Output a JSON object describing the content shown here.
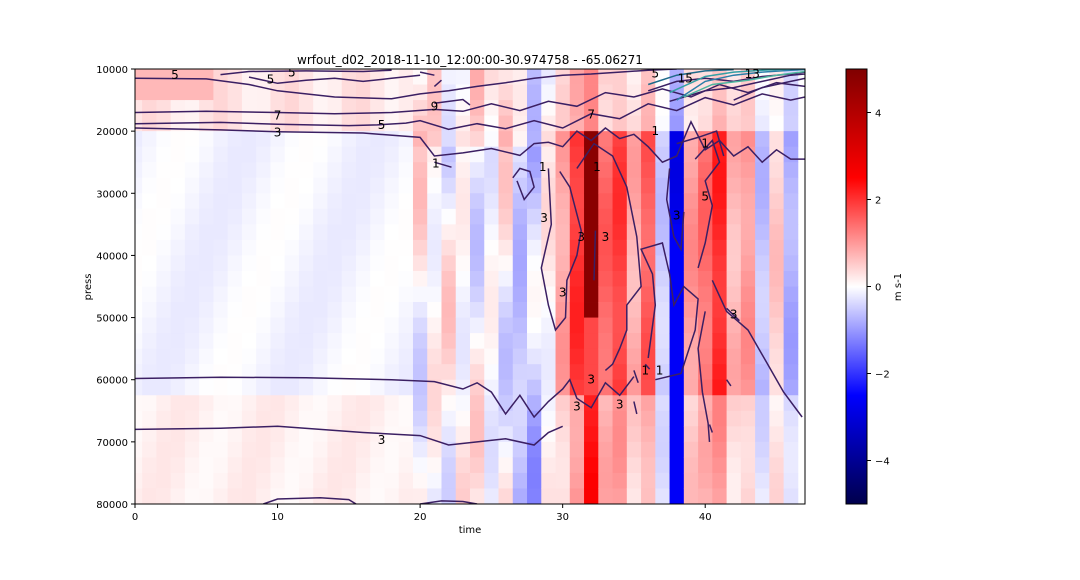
{
  "chart_data": {
    "type": "heatmap",
    "title": "wrfout_d02_2018-11-10_12:00:00-30.974758 - -65.06271",
    "xlabel": "time",
    "ylabel": "press",
    "xlim": [
      0,
      47
    ],
    "ylim": [
      80000,
      10000
    ],
    "y_axis_inverted": true,
    "xticks": [
      0,
      10,
      20,
      30,
      40
    ],
    "yticks": [
      10000,
      20000,
      30000,
      40000,
      50000,
      60000,
      70000,
      80000
    ],
    "colorbar": {
      "label": "m s-1",
      "range": [
        -5,
        5
      ],
      "ticks": [
        -4,
        -2,
        0,
        2,
        4
      ],
      "colormap": "seismic",
      "colors": [
        "#00004c",
        "#0000ff",
        "#ffffff",
        "#ff0000",
        "#800000"
      ]
    },
    "grid": false,
    "contour_color": "#3b1f63",
    "contour_labels": [
      {
        "text": "5",
        "x": 2.8,
        "y": 11000
      },
      {
        "text": "5",
        "x": 9.5,
        "y": 11700
      },
      {
        "text": "5",
        "x": 11.0,
        "y": 10600
      },
      {
        "text": "7",
        "x": 10.0,
        "y": 17500
      },
      {
        "text": "3",
        "x": 10.0,
        "y": 20200
      },
      {
        "text": "5",
        "x": 17.3,
        "y": 19000
      },
      {
        "text": "9",
        "x": 21.0,
        "y": 16000
      },
      {
        "text": "7",
        "x": 32.0,
        "y": 17300
      },
      {
        "text": "1",
        "x": 21.1,
        "y": 25200
      },
      {
        "text": "1",
        "x": 28.6,
        "y": 25800
      },
      {
        "text": "1",
        "x": 32.4,
        "y": 25800
      },
      {
        "text": "1",
        "x": 36.5,
        "y": 20000
      },
      {
        "text": "1",
        "x": 40.0,
        "y": 22000
      },
      {
        "text": "3",
        "x": 28.7,
        "y": 34000
      },
      {
        "text": "3",
        "x": 31.3,
        "y": 37000
      },
      {
        "text": "3",
        "x": 33.0,
        "y": 37000
      },
      {
        "text": "3",
        "x": 38.0,
        "y": 33600
      },
      {
        "text": "5",
        "x": 40.0,
        "y": 30500
      },
      {
        "text": "3",
        "x": 30.0,
        "y": 46000
      },
      {
        "text": "3",
        "x": 42.0,
        "y": 49500
      },
      {
        "text": "3",
        "x": 32.0,
        "y": 60000
      },
      {
        "text": "1",
        "x": 35.8,
        "y": 58500
      },
      {
        "text": "1",
        "x": 36.8,
        "y": 58500
      },
      {
        "text": "3",
        "x": 31.0,
        "y": 64300
      },
      {
        "text": "3",
        "x": 34.0,
        "y": 64000
      },
      {
        "text": "3",
        "x": 17.3,
        "y": 69700
      },
      {
        "text": "13",
        "x": 43.3,
        "y": 10800
      },
      {
        "text": "5",
        "x": 36.5,
        "y": 10700
      },
      {
        "text": "15",
        "x": 38.6,
        "y": 11500
      }
    ]
  }
}
